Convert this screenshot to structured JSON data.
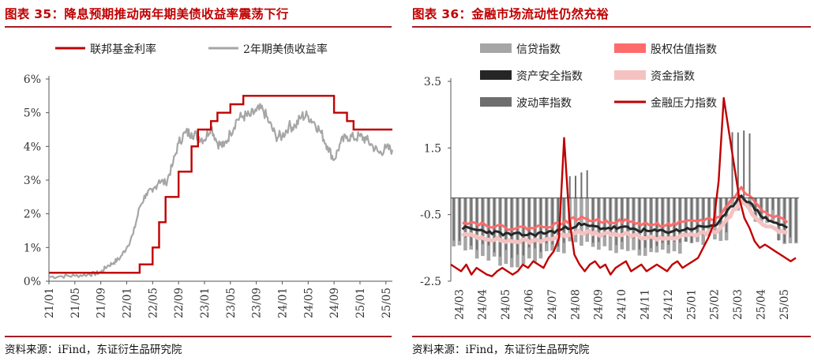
{
  "left": {
    "title": "图表 35：降息预期推动两年期美债收益率震荡下行",
    "source": "资料来源：iFind，东证衍生品研究院"
  },
  "right": {
    "title": "图表 36：金融市场流动性仍然充裕",
    "source": "资料来源：iFind，东证衍生品研究院"
  },
  "colors": {
    "title_red": "#c00000",
    "fed_funds": "#c00000",
    "us2y": "#a6a6a6",
    "credit": "#a6a6a6",
    "equity_val": "#ff6b6b",
    "asset_safety": "#262626",
    "funding": "#f4c2c2",
    "volatility": "#6e6e6e",
    "stress": "#c00000"
  },
  "chart_data": [
    {
      "type": "line",
      "x_ticks": [
        "21/01",
        "21/05",
        "21/09",
        "22/01",
        "22/05",
        "22/09",
        "23/01",
        "23/05",
        "23/09",
        "24/01",
        "24/05",
        "24/09",
        "25/01",
        "25/05"
      ],
      "yticks": [
        "0%",
        "1%",
        "2%",
        "3%",
        "4%",
        "5%",
        "6%"
      ],
      "ylim": [
        0,
        6
      ],
      "legend_position": "top",
      "series": [
        {
          "name": "联邦基金利率",
          "style": "step",
          "points": [
            [
              "21/01",
              0.25
            ],
            [
              "22/03",
              0.25
            ],
            [
              "22/03",
              0.5
            ],
            [
              "22/05",
              0.5
            ],
            [
              "22/05",
              1.0
            ],
            [
              "22/06",
              1.0
            ],
            [
              "22/06",
              1.75
            ],
            [
              "22/07",
              1.75
            ],
            [
              "22/07",
              2.5
            ],
            [
              "22/09",
              2.5
            ],
            [
              "22/09",
              3.25
            ],
            [
              "22/11",
              3.25
            ],
            [
              "22/11",
              4.0
            ],
            [
              "22/12",
              4.0
            ],
            [
              "22/12",
              4.5
            ],
            [
              "23/02",
              4.5
            ],
            [
              "23/02",
              4.75
            ],
            [
              "23/03",
              4.75
            ],
            [
              "23/03",
              5.0
            ],
            [
              "23/05",
              5.0
            ],
            [
              "23/05",
              5.25
            ],
            [
              "23/07",
              5.25
            ],
            [
              "23/07",
              5.5
            ],
            [
              "24/09",
              5.5
            ],
            [
              "24/09",
              5.0
            ],
            [
              "24/11",
              5.0
            ],
            [
              "24/11",
              4.75
            ],
            [
              "24/12",
              4.75
            ],
            [
              "24/12",
              4.5
            ],
            [
              "25/06",
              4.5
            ]
          ]
        },
        {
          "name": "2年期美债收益率",
          "style": "line",
          "points": [
            [
              "21/01",
              0.13
            ],
            [
              "21/03",
              0.15
            ],
            [
              "21/05",
              0.16
            ],
            [
              "21/07",
              0.2
            ],
            [
              "21/08",
              0.22
            ],
            [
              "21/09",
              0.27
            ],
            [
              "21/10",
              0.45
            ],
            [
              "21/11",
              0.55
            ],
            [
              "21/12",
              0.7
            ],
            [
              "22/01",
              1.0
            ],
            [
              "22/02",
              1.4
            ],
            [
              "22/03",
              2.2
            ],
            [
              "22/04",
              2.6
            ],
            [
              "22/05",
              2.65
            ],
            [
              "22/06",
              3.0
            ],
            [
              "22/07",
              2.9
            ],
            [
              "22/08",
              3.4
            ],
            [
              "22/09",
              4.1
            ],
            [
              "22/10",
              4.4
            ],
            [
              "22/11",
              4.4
            ],
            [
              "22/12",
              4.3
            ],
            [
              "23/01",
              4.2
            ],
            [
              "23/02",
              4.6
            ],
            [
              "23/03",
              4.1
            ],
            [
              "23/04",
              4.0
            ],
            [
              "23/05",
              4.4
            ],
            [
              "23/06",
              4.8
            ],
            [
              "23/07",
              4.9
            ],
            [
              "23/08",
              4.9
            ],
            [
              "23/09",
              5.05
            ],
            [
              "23/10",
              5.1
            ],
            [
              "23/11",
              4.7
            ],
            [
              "23/12",
              4.3
            ],
            [
              "24/01",
              4.3
            ],
            [
              "24/02",
              4.6
            ],
            [
              "24/03",
              4.6
            ],
            [
              "24/04",
              4.9
            ],
            [
              "24/05",
              4.9
            ],
            [
              "24/06",
              4.7
            ],
            [
              "24/07",
              4.4
            ],
            [
              "24/08",
              4.0
            ],
            [
              "24/09",
              3.6
            ],
            [
              "24/10",
              4.1
            ],
            [
              "24/11",
              4.3
            ],
            [
              "24/12",
              4.25
            ],
            [
              "25/01",
              4.3
            ],
            [
              "25/02",
              4.2
            ],
            [
              "25/03",
              4.0
            ],
            [
              "25/04",
              3.8
            ],
            [
              "25/05",
              3.95
            ],
            [
              "25/06",
              3.9
            ]
          ]
        }
      ]
    },
    {
      "type": "bar",
      "x_ticks": [
        "24/03",
        "24/04",
        "24/05",
        "24/06",
        "24/07",
        "24/08",
        "24/09",
        "24/10",
        "24/11",
        "24/12",
        "25/01",
        "25/02",
        "25/03",
        "25/04",
        "25/05"
      ],
      "yticks": [
        "3.5",
        "1.5",
        "-0.5",
        "-2.5"
      ],
      "ylim": [
        -2.5,
        3.5
      ],
      "legend_position": "top",
      "legend": [
        "信贷指数",
        "股权估值指数",
        "资产安全指数",
        "资金指数",
        "波动率指数",
        "金融压力指数"
      ],
      "series": [
        {
          "name": "信贷指数",
          "values_approx": [
            -1.5,
            -1.8,
            -2.0,
            -1.9,
            -1.6,
            -1.4,
            -1.5,
            -1.6,
            -1.7,
            -1.6,
            -1.4,
            -1.2,
            -0.3,
            -0.8,
            -1.3
          ]
        },
        {
          "name": "股权估值指数",
          "values_approx": [
            -0.7,
            -0.8,
            -0.9,
            -0.9,
            -0.8,
            -0.6,
            -0.7,
            -0.7,
            -0.8,
            -0.8,
            -0.7,
            -0.6,
            0.3,
            -0.4,
            -0.7
          ]
        },
        {
          "name": "资产安全指数",
          "values_approx": [
            -0.9,
            -1.0,
            -1.1,
            -1.1,
            -1.0,
            -0.8,
            -0.9,
            -0.9,
            -1.0,
            -1.0,
            -0.9,
            -0.8,
            0.1,
            -0.6,
            -0.9
          ]
        },
        {
          "name": "资金指数",
          "values_approx": [
            -1.1,
            -1.2,
            -1.3,
            -1.3,
            -1.2,
            -1.0,
            -1.1,
            -1.1,
            -1.2,
            -1.2,
            -1.1,
            -1.0,
            -0.1,
            -0.8,
            -1.1
          ]
        },
        {
          "name": "波动率指数",
          "values_approx": [
            -1.3,
            -1.5,
            -1.7,
            -1.6,
            -1.4,
            0.8,
            -1.2,
            -1.3,
            -1.5,
            -1.4,
            -1.2,
            -0.9,
            2.0,
            -0.5,
            -1.2
          ]
        },
        {
          "name": "金融压力指数",
          "style": "line",
          "values": [
            -2.0,
            -2.1,
            -2.2,
            -2.0,
            -2.3,
            -2.1,
            -2.2,
            -2.3,
            -2.35,
            -2.2,
            -2.1,
            -2.2,
            -2.3,
            -2.2,
            -2.0,
            -2.1,
            -1.9,
            -2.0,
            -2.1,
            -1.8,
            -1.6,
            -1.2,
            1.8,
            -0.6,
            -1.7,
            -2.0,
            -2.2,
            -2.0,
            -1.9,
            -2.1,
            -2.0,
            -2.3,
            -2.1,
            -2.0,
            -1.9,
            -2.2,
            -2.1,
            -2.0,
            -2.2,
            -2.1,
            -2.0,
            -2.1,
            -2.2,
            -2.0,
            -1.9,
            -2.1,
            -2.0,
            -1.9,
            -1.8,
            -1.5,
            -1.2,
            -0.8,
            0.5,
            3.0,
            2.0,
            1.0,
            0.0,
            -0.6,
            -0.9,
            -1.3,
            -1.5,
            -1.4,
            -1.5,
            -1.6,
            -1.7,
            -1.8,
            -1.9,
            -1.8
          ]
        }
      ]
    }
  ]
}
